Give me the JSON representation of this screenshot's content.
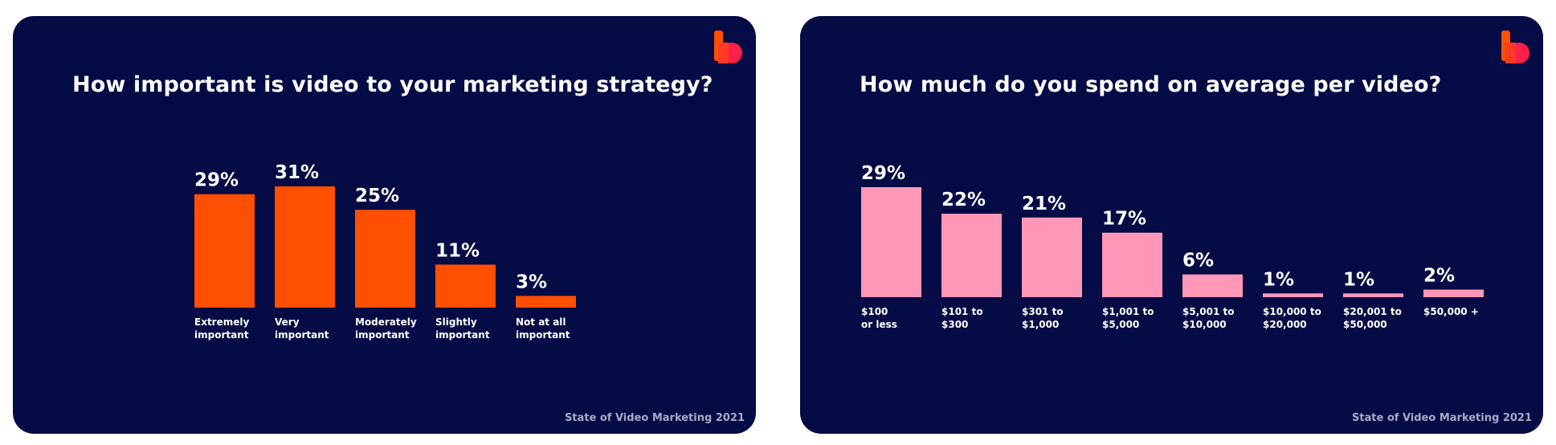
{
  "footer": "State of Video Marketing 2021",
  "colors": {
    "background": "#040b45",
    "left_bar": "#ff4f00",
    "right_bar": "#ff97b6",
    "text": "#ffffff",
    "footer_text": "#a7a9c4"
  },
  "logo": {
    "icon": "brand-b-logo-icon",
    "colors": [
      "#ff4f00",
      "#ff1f4b"
    ]
  },
  "chart_data": [
    {
      "type": "bar",
      "title": "How important is video to your marketing strategy?",
      "categories": [
        [
          "Extremely",
          "important"
        ],
        [
          "Very",
          "important"
        ],
        [
          "Moderately",
          "important"
        ],
        [
          "Slightly",
          "important"
        ],
        [
          "Not at all",
          "important"
        ]
      ],
      "values": [
        29,
        31,
        25,
        11,
        3
      ],
      "data_labels": [
        "29%",
        "31%",
        "25%",
        "11%",
        "3%"
      ],
      "unit": "%",
      "xlabel": "",
      "ylabel": "",
      "ylim": [
        0,
        31
      ],
      "grid": false,
      "legend": "none"
    },
    {
      "type": "bar",
      "title": "How much do you spend on average per video?",
      "categories": [
        [
          "$100",
          "or less"
        ],
        [
          "$101 to",
          "$300"
        ],
        [
          "$301 to",
          "$1,000"
        ],
        [
          "$1,001 to",
          "$5,000"
        ],
        [
          "$5,001 to",
          "$10,000"
        ],
        [
          "$10,000 to",
          "$20,000"
        ],
        [
          "$20,001 to",
          "$50,000"
        ],
        [
          "$50,000 +"
        ]
      ],
      "values": [
        29,
        22,
        21,
        17,
        6,
        1,
        1,
        2
      ],
      "data_labels": [
        "29%",
        "22%",
        "21%",
        "17%",
        "6%",
        "1%",
        "1%",
        "2%"
      ],
      "unit": "%",
      "xlabel": "",
      "ylabel": "",
      "ylim": [
        0,
        29
      ],
      "grid": false,
      "legend": "none"
    }
  ]
}
